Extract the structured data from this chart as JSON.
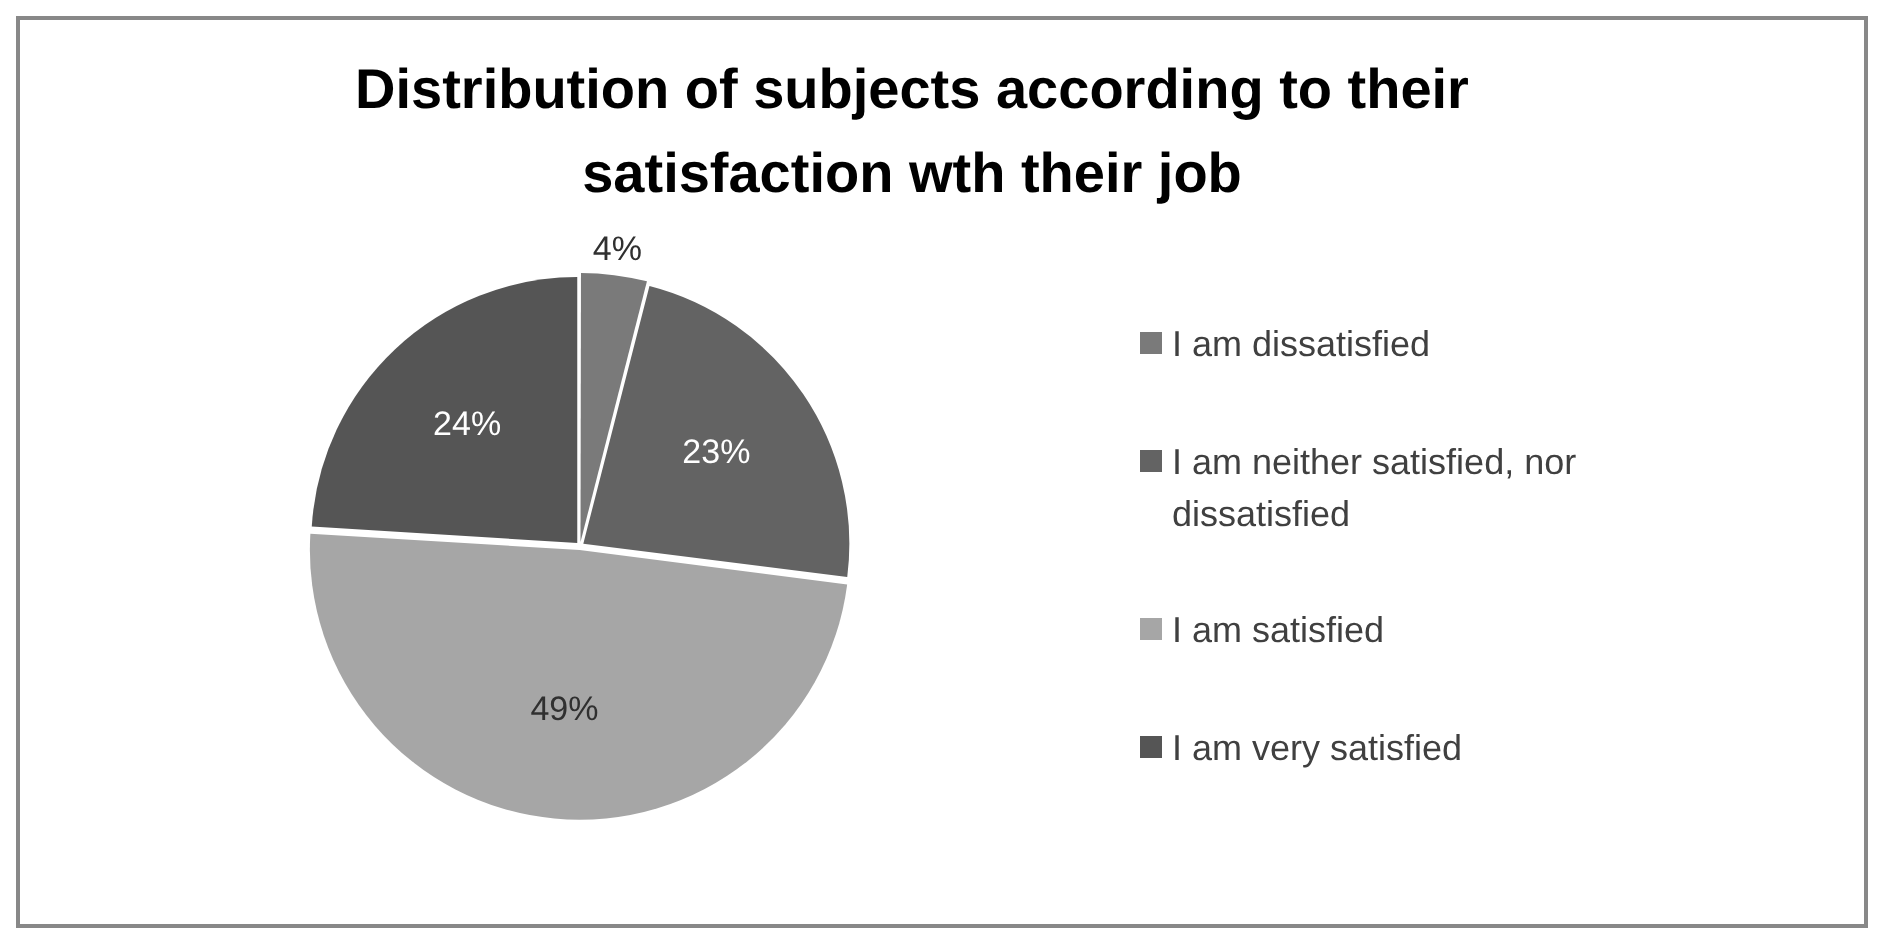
{
  "chart_data": {
    "type": "pie",
    "title": "Distribution of subjects according to their satisfaction wth their job",
    "categories": [
      "I am dissatisfied",
      "I am neither satisfied, nor dissatisfied",
      "I am satisfied",
      "I am very satisfied"
    ],
    "values": [
      4,
      23,
      49,
      24
    ],
    "colors": [
      "#7a7a7a",
      "#636363",
      "#a6a6a6",
      "#555555"
    ],
    "value_labels": [
      "4%",
      "23%",
      "49%",
      "24%"
    ],
    "legend": "right"
  }
}
